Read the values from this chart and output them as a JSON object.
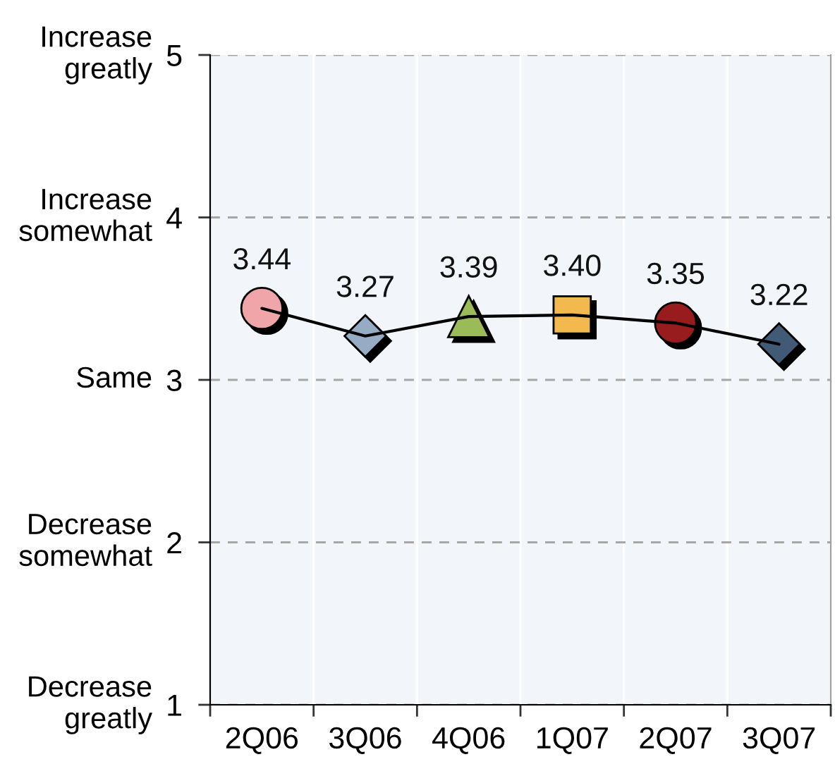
{
  "chart_data": {
    "type": "line",
    "categories": [
      "2Q06",
      "3Q06",
      "4Q06",
      "1Q07",
      "2Q07",
      "3Q07"
    ],
    "series": [
      {
        "color": "#000000",
        "colors": [
          "#f0a5a8",
          "#95acc4",
          "#9bbb59",
          "#f2b94f",
          "#981b1e",
          "#415a75"
        ],
        "marker": [
          "circle",
          "diamond",
          "triangle",
          "square",
          "circle",
          "diamond"
        ],
        "values": [
          3.44,
          3.27,
          3.39,
          3.4,
          3.35,
          3.22
        ],
        "value_labels": [
          "3.44",
          "3.27",
          "3.39",
          "3.40",
          "3.35",
          "3.22"
        ]
      }
    ],
    "ylim": [
      1,
      5
    ],
    "yticks": [
      1,
      2,
      3,
      4,
      5
    ],
    "annotations": [
      "Increase\ngreatly",
      "Increase\nsomewhat",
      "Same",
      "Decrease\nsomewhat",
      "Decrease\ngreatly"
    ],
    "grid": true,
    "line_style": "solid"
  }
}
